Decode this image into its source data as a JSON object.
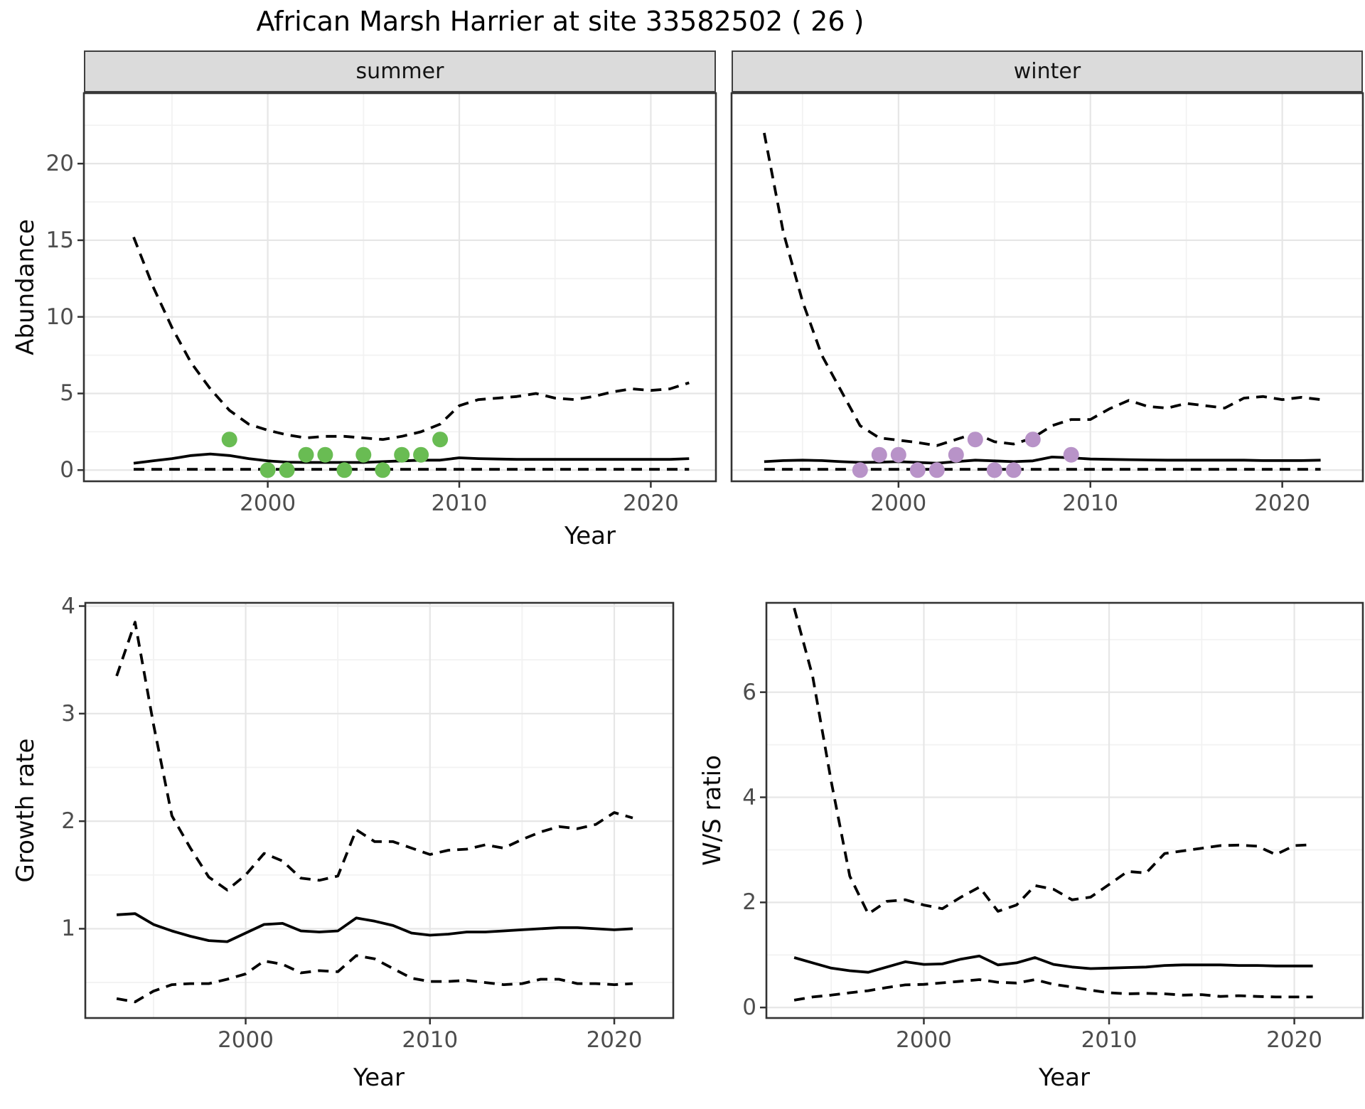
{
  "title": "African Marsh Harrier at site 33582502 ( 26 )",
  "colors": {
    "summer_point": "#69BC53",
    "winter_point": "#B893C8",
    "line": "#000000",
    "panel_border": "#333333",
    "strip_bg": "#DBDBDB",
    "grid_major": "#E6E6E6",
    "grid_minor": "#F2F2F2",
    "tick_label": "#4D4D4D"
  },
  "chart_data": [
    {
      "type": "line",
      "panel": "abundance-summer",
      "facet": "summer",
      "xlabel": "Year",
      "ylabel": "Abundance",
      "x": [
        1993,
        1994,
        1995,
        1996,
        1997,
        1998,
        1999,
        2000,
        2001,
        2002,
        2003,
        2004,
        2005,
        2006,
        2007,
        2008,
        2009,
        2010,
        2011,
        2012,
        2013,
        2014,
        2015,
        2016,
        2017,
        2018,
        2019,
        2020,
        2021,
        2022
      ],
      "series": [
        {
          "name": "median",
          "style": "solid",
          "values": [
            0.45,
            0.6,
            0.75,
            0.95,
            1.05,
            0.95,
            0.75,
            0.6,
            0.52,
            0.5,
            0.5,
            0.5,
            0.5,
            0.55,
            0.6,
            0.65,
            0.65,
            0.8,
            0.75,
            0.72,
            0.7,
            0.7,
            0.7,
            0.7,
            0.7,
            0.7,
            0.7,
            0.7,
            0.7,
            0.75
          ]
        },
        {
          "name": "lower95",
          "style": "dashed",
          "values": [
            0.05,
            0.05,
            0.05,
            0.05,
            0.05,
            0.05,
            0.05,
            0.05,
            0.05,
            0.05,
            0.05,
            0.05,
            0.05,
            0.05,
            0.05,
            0.05,
            0.05,
            0.05,
            0.05,
            0.05,
            0.05,
            0.05,
            0.05,
            0.05,
            0.05,
            0.05,
            0.05,
            0.05,
            0.05,
            0.05
          ]
        },
        {
          "name": "upper95",
          "style": "dashed",
          "values": [
            15.2,
            12.0,
            9.3,
            7.0,
            5.3,
            3.9,
            3.0,
            2.6,
            2.3,
            2.1,
            2.2,
            2.2,
            2.1,
            2.0,
            2.2,
            2.5,
            3.0,
            4.2,
            4.6,
            4.7,
            4.8,
            5.0,
            4.7,
            4.6,
            4.8,
            5.1,
            5.3,
            5.2,
            5.3,
            5.7
          ]
        }
      ],
      "points": {
        "color": "#69BC53",
        "data": [
          [
            1998,
            2
          ],
          [
            2000,
            0
          ],
          [
            2001,
            0
          ],
          [
            2002,
            1
          ],
          [
            2003,
            1
          ],
          [
            2004,
            0
          ],
          [
            2005,
            1
          ],
          [
            2006,
            0
          ],
          [
            2007,
            1
          ],
          [
            2008,
            1
          ],
          [
            2009,
            2
          ]
        ]
      },
      "xticks": [
        2000,
        2010,
        2020
      ],
      "xminor": [
        1995,
        2005,
        2015
      ],
      "yticks": [
        0,
        5,
        10,
        15,
        20
      ],
      "yminor": [
        2.5,
        7.5,
        12.5,
        17.5,
        22.5
      ],
      "xlim": [
        1990.4,
        2023.4
      ],
      "ylim": [
        -0.73,
        24.6
      ],
      "grid": "on",
      "legend": "none"
    },
    {
      "type": "line",
      "panel": "abundance-winter",
      "facet": "winter",
      "xlabel": "Year",
      "ylabel": "Abundance",
      "x": [
        1993,
        1994,
        1995,
        1996,
        1997,
        1998,
        1999,
        2000,
        2001,
        2002,
        2003,
        2004,
        2005,
        2006,
        2007,
        2008,
        2009,
        2010,
        2011,
        2012,
        2013,
        2014,
        2015,
        2016,
        2017,
        2018,
        2019,
        2020,
        2021,
        2022
      ],
      "series": [
        {
          "name": "median",
          "style": "solid",
          "values": [
            0.55,
            0.62,
            0.65,
            0.62,
            0.55,
            0.5,
            0.52,
            0.55,
            0.5,
            0.45,
            0.55,
            0.65,
            0.6,
            0.55,
            0.6,
            0.85,
            0.8,
            0.72,
            0.7,
            0.68,
            0.66,
            0.65,
            0.65,
            0.65,
            0.65,
            0.65,
            0.62,
            0.62,
            0.62,
            0.65
          ]
        },
        {
          "name": "lower95",
          "style": "dashed",
          "values": [
            0.05,
            0.05,
            0.05,
            0.05,
            0.05,
            0.05,
            0.05,
            0.05,
            0.05,
            0.05,
            0.05,
            0.05,
            0.05,
            0.05,
            0.05,
            0.05,
            0.05,
            0.05,
            0.05,
            0.05,
            0.05,
            0.05,
            0.05,
            0.05,
            0.05,
            0.05,
            0.05,
            0.05,
            0.05,
            0.05
          ]
        },
        {
          "name": "upper95",
          "style": "dashed",
          "values": [
            22.0,
            15.5,
            11.0,
            7.5,
            5.2,
            2.9,
            2.1,
            1.95,
            1.8,
            1.6,
            2.0,
            2.4,
            1.85,
            1.7,
            2.1,
            2.9,
            3.3,
            3.3,
            4.0,
            4.55,
            4.15,
            4.05,
            4.35,
            4.2,
            4.05,
            4.7,
            4.8,
            4.6,
            4.75,
            4.6
          ]
        }
      ],
      "points": {
        "color": "#B893C8",
        "data": [
          [
            1998,
            0
          ],
          [
            1999,
            1
          ],
          [
            2000,
            1
          ],
          [
            2001,
            0
          ],
          [
            2002,
            0
          ],
          [
            2003,
            1
          ],
          [
            2004,
            2
          ],
          [
            2005,
            0
          ],
          [
            2006,
            0
          ],
          [
            2007,
            2
          ],
          [
            2009,
            1
          ]
        ]
      },
      "xticks": [
        2000,
        2010,
        2020
      ],
      "xminor": [
        1995,
        2005,
        2015
      ],
      "yticks": [
        0,
        5,
        10,
        15,
        20
      ],
      "yminor": [
        2.5,
        7.5,
        12.5,
        17.5,
        22.5
      ],
      "xlim": [
        1991.3,
        2024.2
      ],
      "ylim": [
        -0.73,
        24.6
      ],
      "grid": "on",
      "legend": "none"
    },
    {
      "type": "line",
      "panel": "growth-rate",
      "facet": "",
      "xlabel": "Year",
      "ylabel": "Growth rate",
      "x": [
        1993,
        1994,
        1995,
        1996,
        1997,
        1998,
        1999,
        2000,
        2001,
        2002,
        2003,
        2004,
        2005,
        2006,
        2007,
        2008,
        2009,
        2010,
        2011,
        2012,
        2013,
        2014,
        2015,
        2016,
        2017,
        2018,
        2019,
        2020,
        2021
      ],
      "series": [
        {
          "name": "median",
          "style": "solid",
          "values": [
            1.13,
            1.14,
            1.04,
            0.98,
            0.93,
            0.89,
            0.88,
            0.96,
            1.04,
            1.05,
            0.98,
            0.97,
            0.98,
            1.1,
            1.07,
            1.03,
            0.96,
            0.94,
            0.95,
            0.97,
            0.97,
            0.98,
            0.99,
            1.0,
            1.01,
            1.01,
            1.0,
            0.99,
            1.0
          ]
        },
        {
          "name": "lower95",
          "style": "dashed",
          "values": [
            0.35,
            0.32,
            0.42,
            0.48,
            0.49,
            0.49,
            0.53,
            0.58,
            0.7,
            0.67,
            0.59,
            0.61,
            0.6,
            0.75,
            0.72,
            0.63,
            0.54,
            0.51,
            0.51,
            0.52,
            0.5,
            0.48,
            0.49,
            0.53,
            0.53,
            0.49,
            0.49,
            0.48,
            0.49
          ]
        },
        {
          "name": "upper95",
          "style": "dashed",
          "values": [
            3.35,
            3.85,
            2.9,
            2.05,
            1.75,
            1.48,
            1.36,
            1.5,
            1.7,
            1.63,
            1.47,
            1.45,
            1.49,
            1.92,
            1.81,
            1.81,
            1.75,
            1.69,
            1.73,
            1.74,
            1.78,
            1.75,
            1.83,
            1.9,
            1.95,
            1.93,
            1.97,
            2.08,
            2.03
          ]
        }
      ],
      "points": {
        "color": "",
        "data": []
      },
      "xticks": [
        2000,
        2010,
        2020
      ],
      "xminor": [
        1995,
        2005,
        2015
      ],
      "yticks": [
        1,
        2,
        3,
        4
      ],
      "yminor": [
        0.5,
        1.5,
        2.5,
        3.5
      ],
      "xlim": [
        1991.3,
        2023.2
      ],
      "ylim": [
        0.17,
        4.03
      ],
      "grid": "on",
      "legend": "none"
    },
    {
      "type": "line",
      "panel": "ws-ratio",
      "facet": "",
      "xlabel": "Year",
      "ylabel": "W/S ratio",
      "x": [
        1993,
        1994,
        1995,
        1996,
        1997,
        1998,
        1999,
        2000,
        2001,
        2002,
        2003,
        2004,
        2005,
        2006,
        2007,
        2008,
        2009,
        2010,
        2011,
        2012,
        2013,
        2014,
        2015,
        2016,
        2017,
        2018,
        2019,
        2020,
        2021
      ],
      "series": [
        {
          "name": "median",
          "style": "solid",
          "values": [
            0.95,
            0.85,
            0.75,
            0.7,
            0.67,
            0.77,
            0.87,
            0.82,
            0.83,
            0.92,
            0.98,
            0.81,
            0.85,
            0.95,
            0.82,
            0.77,
            0.74,
            0.75,
            0.76,
            0.77,
            0.8,
            0.81,
            0.81,
            0.81,
            0.8,
            0.8,
            0.79,
            0.79,
            0.79
          ]
        },
        {
          "name": "lower95",
          "style": "dashed",
          "values": [
            0.14,
            0.2,
            0.235,
            0.28,
            0.32,
            0.38,
            0.43,
            0.44,
            0.47,
            0.5,
            0.53,
            0.48,
            0.465,
            0.53,
            0.44,
            0.39,
            0.33,
            0.28,
            0.26,
            0.27,
            0.26,
            0.235,
            0.245,
            0.21,
            0.225,
            0.21,
            0.2,
            0.2,
            0.2
          ]
        },
        {
          "name": "upper95",
          "style": "dashed",
          "values": [
            7.6,
            6.3,
            4.3,
            2.5,
            1.78,
            2.02,
            2.05,
            1.95,
            1.88,
            2.1,
            2.29,
            1.83,
            1.95,
            2.32,
            2.25,
            2.05,
            2.1,
            2.34,
            2.59,
            2.56,
            2.93,
            2.98,
            3.03,
            3.08,
            3.09,
            3.07,
            2.91,
            3.08,
            3.1
          ]
        }
      ],
      "points": {
        "color": "",
        "data": []
      },
      "xticks": [
        2000,
        2010,
        2020
      ],
      "xminor": [
        1995,
        2005,
        2015
      ],
      "yticks": [
        0,
        2,
        4,
        6
      ],
      "yminor": [
        1,
        3,
        5,
        7
      ],
      "xlim": [
        1991.5,
        2023.7
      ],
      "ylim": [
        -0.2,
        7.7
      ],
      "grid": "on",
      "legend": "none"
    }
  ]
}
